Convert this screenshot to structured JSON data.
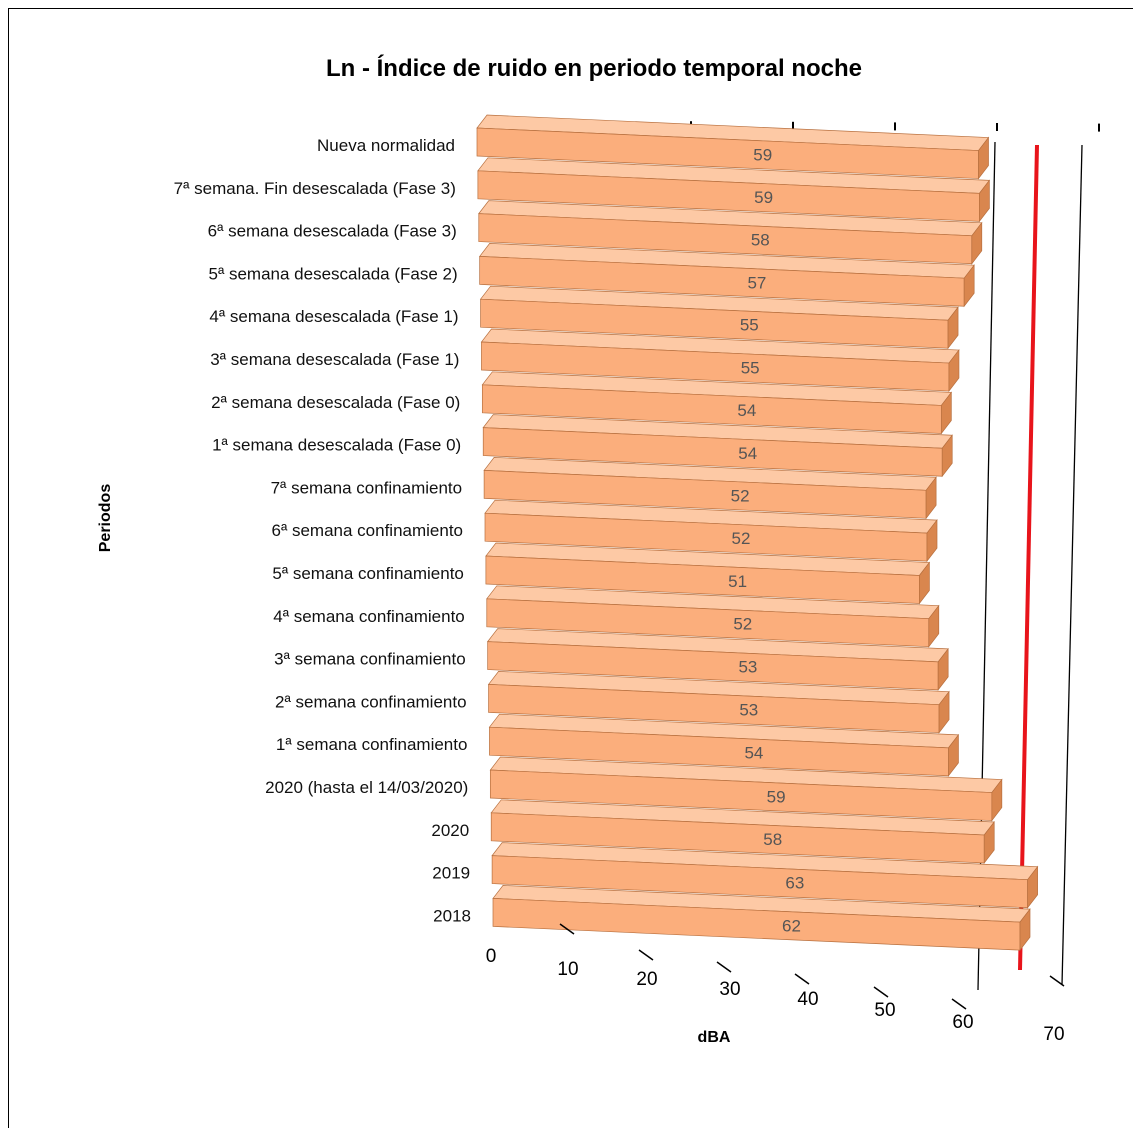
{
  "chart_data": {
    "type": "bar",
    "orientation": "horizontal",
    "title": "Ln - Índice de ruido en periodo temporal noche",
    "xlabel": "dBA",
    "ylabel": "Periodos",
    "xlim": [
      0,
      70
    ],
    "xticks": [
      "0",
      "10",
      "20",
      "30",
      "40",
      "50",
      "60",
      "70"
    ],
    "categories": [
      "Nueva normalidad",
      "7ª semana. Fin desescalada (Fase 3)",
      "6ª semana desescalada (Fase 3)",
      "5ª semana desescalada (Fase 2)",
      "4ª semana desescalada (Fase 1)",
      "3ª semana desescalada (Fase 1)",
      "2ª semana desescalada (Fase 0)",
      "1ª semana desescalada (Fase 0)",
      "7ª semana confinamiento",
      "6ª semana confinamiento",
      "5ª semana confinamiento",
      "4ª semana confinamiento",
      "3ª semana confinamiento",
      "2ª semana confinamiento",
      "1ª semana confinamiento",
      "2020 (hasta el 14/03/2020)",
      "2020",
      "2019",
      "2018"
    ],
    "values": [
      59,
      59,
      58,
      57,
      55,
      55,
      54,
      54,
      52,
      52,
      51,
      52,
      53,
      53,
      54,
      59,
      58,
      63,
      62
    ],
    "grid": true,
    "legend": "none",
    "colors": {
      "bar_front": "#FBAE7C",
      "bar_top": "#FDC9A5",
      "bar_side": "#D9864E",
      "bar_edge": "#B8703F",
      "reference_line": "#E8141B",
      "value_label": "#555555"
    }
  }
}
